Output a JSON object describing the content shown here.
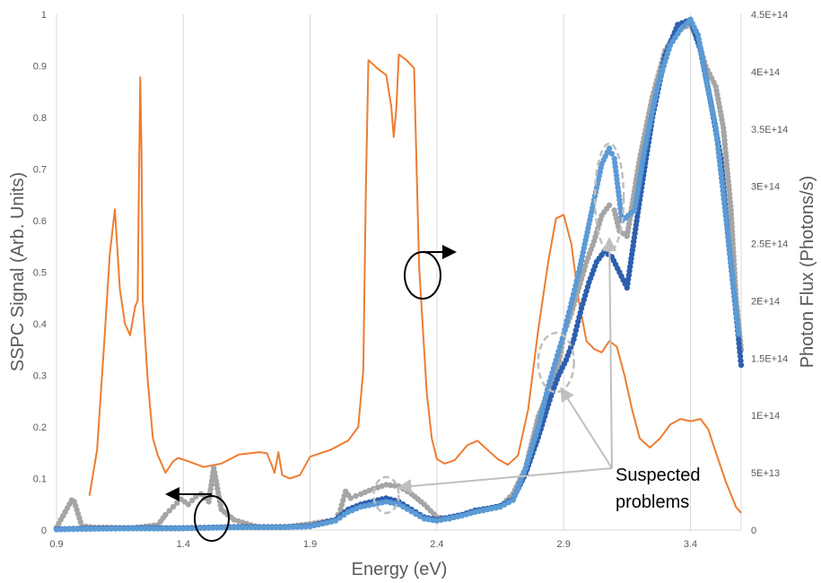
{
  "chart_data": {
    "type": "scatter",
    "xlabel": "Energy (eV)",
    "ylabel": "SSPC Signal (Arb. Units)",
    "y2label": "Photon Flux (Photons/s)",
    "xlim": [
      0.9,
      3.6
    ],
    "ylim": [
      0,
      1
    ],
    "y2lim": [
      0,
      450000000000000
    ],
    "x_ticks": [
      0.9,
      1.4,
      1.9,
      2.4,
      2.9,
      3.4
    ],
    "x_tick_labels": [
      "0.9",
      "1.4",
      "1.9",
      "2.4",
      "2.9",
      "3.4"
    ],
    "y_ticks": [
      0,
      0.1,
      0.2,
      0.3,
      0.4,
      0.5,
      0.6,
      0.7,
      0.8,
      0.9,
      1
    ],
    "y_tick_labels": [
      "0",
      "0.1",
      "0.2",
      "0.3",
      "0.4",
      "0.5",
      "0.6",
      "0.7",
      "0.8",
      "0.9",
      "1"
    ],
    "y2_ticks": [
      0,
      50000000000000,
      100000000000000,
      150000000000000,
      200000000000000,
      250000000000000,
      300000000000000,
      350000000000000,
      400000000000000,
      450000000000000
    ],
    "y2_tick_labels": [
      "0",
      "5E+13",
      "1E+14",
      "1.5E+14",
      "2E+14",
      "2.5E+14",
      "3E+14",
      "3.5E+14",
      "4E+14",
      "4.5E+14"
    ],
    "grid": "vertical",
    "series": [
      {
        "axis": "right",
        "kind": "line",
        "color": "#ED7D31",
        "points": [
          [
            1.03,
            30000000000000
          ],
          [
            1.06,
            70000000000000
          ],
          [
            1.09,
            170000000000000
          ],
          [
            1.11,
            240000000000000
          ],
          [
            1.13,
            280000000000000
          ],
          [
            1.15,
            210000000000000
          ],
          [
            1.17,
            180000000000000
          ],
          [
            1.19,
            170000000000000
          ],
          [
            1.21,
            195000000000000
          ],
          [
            1.22,
            200000000000000
          ],
          [
            1.225,
            300000000000000
          ],
          [
            1.23,
            395000000000000
          ],
          [
            1.235,
            330000000000000
          ],
          [
            1.24,
            200000000000000
          ],
          [
            1.26,
            130000000000000
          ],
          [
            1.28,
            80000000000000
          ],
          [
            1.3,
            65000000000000
          ],
          [
            1.33,
            50000000000000
          ],
          [
            1.36,
            60000000000000
          ],
          [
            1.38,
            63000000000000
          ],
          [
            1.42,
            60000000000000
          ],
          [
            1.48,
            55000000000000
          ],
          [
            1.55,
            58000000000000
          ],
          [
            1.62,
            66000000000000
          ],
          [
            1.7,
            68000000000000
          ],
          [
            1.73,
            67000000000000
          ],
          [
            1.75,
            56000000000000
          ],
          [
            1.76,
            50000000000000
          ],
          [
            1.775,
            68000000000000
          ],
          [
            1.79,
            48000000000000
          ],
          [
            1.82,
            45000000000000
          ],
          [
            1.86,
            48000000000000
          ],
          [
            1.9,
            64000000000000
          ],
          [
            1.98,
            70000000000000
          ],
          [
            2.05,
            78000000000000
          ],
          [
            2.09,
            90000000000000
          ],
          [
            2.11,
            140000000000000
          ],
          [
            2.12,
            300000000000000
          ],
          [
            2.13,
            410000000000000
          ],
          [
            2.17,
            402000000000000
          ],
          [
            2.2,
            397000000000000
          ],
          [
            2.22,
            370000000000000
          ],
          [
            2.23,
            343000000000000
          ],
          [
            2.24,
            368000000000000
          ],
          [
            2.25,
            415000000000000
          ],
          [
            2.28,
            410000000000000
          ],
          [
            2.31,
            403000000000000
          ],
          [
            2.33,
            230000000000000
          ],
          [
            2.36,
            120000000000000
          ],
          [
            2.38,
            80000000000000
          ],
          [
            2.4,
            62000000000000
          ],
          [
            2.43,
            58000000000000
          ],
          [
            2.47,
            61000000000000
          ],
          [
            2.52,
            74000000000000
          ],
          [
            2.56,
            78000000000000
          ],
          [
            2.6,
            70000000000000
          ],
          [
            2.64,
            62000000000000
          ],
          [
            2.68,
            57000000000000
          ],
          [
            2.72,
            65000000000000
          ],
          [
            2.76,
            105000000000000
          ],
          [
            2.8,
            175000000000000
          ],
          [
            2.84,
            235000000000000
          ],
          [
            2.87,
            272000000000000
          ],
          [
            2.9,
            275000000000000
          ],
          [
            2.93,
            250000000000000
          ],
          [
            2.96,
            200000000000000
          ],
          [
            2.99,
            165000000000000
          ],
          [
            3.02,
            158000000000000
          ],
          [
            3.05,
            155000000000000
          ],
          [
            3.08,
            165000000000000
          ],
          [
            3.11,
            160000000000000
          ],
          [
            3.14,
            135000000000000
          ],
          [
            3.17,
            105000000000000
          ],
          [
            3.2,
            80000000000000
          ],
          [
            3.24,
            72000000000000
          ],
          [
            3.28,
            80000000000000
          ],
          [
            3.32,
            92000000000000
          ],
          [
            3.36,
            97000000000000
          ],
          [
            3.4,
            95000000000000
          ],
          [
            3.44,
            97000000000000
          ],
          [
            3.47,
            88000000000000
          ],
          [
            3.5,
            68000000000000
          ],
          [
            3.54,
            42000000000000
          ],
          [
            3.58,
            20000000000000
          ],
          [
            3.6,
            15000000000000
          ]
        ]
      },
      {
        "axis": "left",
        "kind": "markers",
        "color": "#A5A5A5",
        "points": [
          [
            0.9,
            0.005
          ],
          [
            0.96,
            0.058
          ],
          [
            0.97,
            0.055
          ],
          [
            1.0,
            0.008
          ],
          [
            1.05,
            0.005
          ],
          [
            1.1,
            0.005
          ],
          [
            1.2,
            0.004
          ],
          [
            1.3,
            0.01
          ],
          [
            1.33,
            0.03
          ],
          [
            1.36,
            0.045
          ],
          [
            1.39,
            0.06
          ],
          [
            1.42,
            0.05
          ],
          [
            1.45,
            0.065
          ],
          [
            1.47,
            0.07
          ],
          [
            1.5,
            0.055
          ],
          [
            1.52,
            0.12
          ],
          [
            1.55,
            0.04
          ],
          [
            1.6,
            0.02
          ],
          [
            1.7,
            0.005
          ],
          [
            1.8,
            0.006
          ],
          [
            1.9,
            0.012
          ],
          [
            2.0,
            0.02
          ],
          [
            2.02,
            0.04
          ],
          [
            2.04,
            0.075
          ],
          [
            2.06,
            0.062
          ],
          [
            2.1,
            0.07
          ],
          [
            2.15,
            0.08
          ],
          [
            2.2,
            0.088
          ],
          [
            2.25,
            0.085
          ],
          [
            2.3,
            0.07
          ],
          [
            2.35,
            0.05
          ],
          [
            2.4,
            0.025
          ],
          [
            2.45,
            0.022
          ],
          [
            2.5,
            0.03
          ],
          [
            2.55,
            0.035
          ],
          [
            2.6,
            0.04
          ],
          [
            2.65,
            0.045
          ],
          [
            2.7,
            0.07
          ],
          [
            2.75,
            0.12
          ],
          [
            2.8,
            0.22
          ],
          [
            2.85,
            0.28
          ],
          [
            2.88,
            0.32
          ],
          [
            2.9,
            0.38
          ],
          [
            2.93,
            0.42
          ],
          [
            2.96,
            0.47
          ],
          [
            2.99,
            0.52
          ],
          [
            3.02,
            0.56
          ],
          [
            3.05,
            0.61
          ],
          [
            3.08,
            0.63
          ],
          [
            3.1,
            0.62
          ],
          [
            3.12,
            0.58
          ],
          [
            3.15,
            0.57
          ],
          [
            3.2,
            0.72
          ],
          [
            3.25,
            0.84
          ],
          [
            3.3,
            0.93
          ],
          [
            3.35,
            0.97
          ],
          [
            3.4,
            0.98
          ],
          [
            3.43,
            0.95
          ],
          [
            3.46,
            0.9
          ],
          [
            3.5,
            0.86
          ],
          [
            3.53,
            0.78
          ],
          [
            3.56,
            0.62
          ],
          [
            3.58,
            0.45
          ],
          [
            3.6,
            0.35
          ]
        ]
      },
      {
        "axis": "left",
        "kind": "markers",
        "color": "#2E5FAF",
        "points": [
          [
            0.9,
            0.002
          ],
          [
            1.0,
            0.003
          ],
          [
            1.2,
            0.004
          ],
          [
            1.4,
            0.004
          ],
          [
            1.5,
            0.005
          ],
          [
            1.6,
            0.006
          ],
          [
            1.8,
            0.006
          ],
          [
            1.9,
            0.008
          ],
          [
            2.0,
            0.02
          ],
          [
            2.05,
            0.04
          ],
          [
            2.1,
            0.05
          ],
          [
            2.15,
            0.056
          ],
          [
            2.2,
            0.062
          ],
          [
            2.25,
            0.055
          ],
          [
            2.3,
            0.04
          ],
          [
            2.35,
            0.025
          ],
          [
            2.4,
            0.02
          ],
          [
            2.45,
            0.025
          ],
          [
            2.5,
            0.03
          ],
          [
            2.55,
            0.038
          ],
          [
            2.6,
            0.042
          ],
          [
            2.65,
            0.047
          ],
          [
            2.7,
            0.06
          ],
          [
            2.75,
            0.11
          ],
          [
            2.8,
            0.18
          ],
          [
            2.85,
            0.26
          ],
          [
            2.88,
            0.3
          ],
          [
            2.91,
            0.33
          ],
          [
            2.94,
            0.37
          ],
          [
            2.97,
            0.43
          ],
          [
            3.0,
            0.48
          ],
          [
            3.03,
            0.52
          ],
          [
            3.06,
            0.54
          ],
          [
            3.09,
            0.53
          ],
          [
            3.12,
            0.5
          ],
          [
            3.15,
            0.47
          ],
          [
            3.2,
            0.64
          ],
          [
            3.25,
            0.8
          ],
          [
            3.3,
            0.92
          ],
          [
            3.35,
            0.98
          ],
          [
            3.4,
            0.99
          ],
          [
            3.44,
            0.93
          ],
          [
            3.48,
            0.83
          ],
          [
            3.52,
            0.72
          ],
          [
            3.55,
            0.56
          ],
          [
            3.58,
            0.42
          ],
          [
            3.6,
            0.32
          ]
        ]
      },
      {
        "axis": "left",
        "kind": "markers",
        "color": "#5B9BD5",
        "points": [
          [
            0.9,
            0.001
          ],
          [
            1.0,
            0.002
          ],
          [
            1.2,
            0.003
          ],
          [
            1.4,
            0.003
          ],
          [
            1.5,
            0.004
          ],
          [
            1.6,
            0.005
          ],
          [
            1.8,
            0.005
          ],
          [
            1.9,
            0.007
          ],
          [
            2.0,
            0.018
          ],
          [
            2.05,
            0.035
          ],
          [
            2.1,
            0.045
          ],
          [
            2.15,
            0.05
          ],
          [
            2.2,
            0.055
          ],
          [
            2.25,
            0.05
          ],
          [
            2.3,
            0.036
          ],
          [
            2.35,
            0.022
          ],
          [
            2.4,
            0.018
          ],
          [
            2.45,
            0.023
          ],
          [
            2.5,
            0.028
          ],
          [
            2.55,
            0.035
          ],
          [
            2.6,
            0.04
          ],
          [
            2.65,
            0.045
          ],
          [
            2.7,
            0.058
          ],
          [
            2.75,
            0.12
          ],
          [
            2.8,
            0.2
          ],
          [
            2.84,
            0.28
          ],
          [
            2.87,
            0.33
          ],
          [
            2.9,
            0.38
          ],
          [
            2.93,
            0.44
          ],
          [
            2.96,
            0.5
          ],
          [
            2.99,
            0.57
          ],
          [
            3.02,
            0.64
          ],
          [
            3.05,
            0.71
          ],
          [
            3.08,
            0.74
          ],
          [
            3.1,
            0.72
          ],
          [
            3.13,
            0.6
          ],
          [
            3.18,
            0.62
          ],
          [
            3.22,
            0.74
          ],
          [
            3.27,
            0.86
          ],
          [
            3.32,
            0.94
          ],
          [
            3.36,
            0.97
          ],
          [
            3.4,
            0.99
          ],
          [
            3.43,
            0.96
          ],
          [
            3.46,
            0.88
          ],
          [
            3.5,
            0.78
          ],
          [
            3.53,
            0.65
          ],
          [
            3.56,
            0.52
          ],
          [
            3.59,
            0.38
          ]
        ]
      }
    ],
    "annotations": {
      "problems_label": [
        "Suspected",
        "problems"
      ]
    }
  },
  "colors": {
    "axis_text": "#595959",
    "grid": "#D9D9D9",
    "callout": "#BFBFBF"
  }
}
